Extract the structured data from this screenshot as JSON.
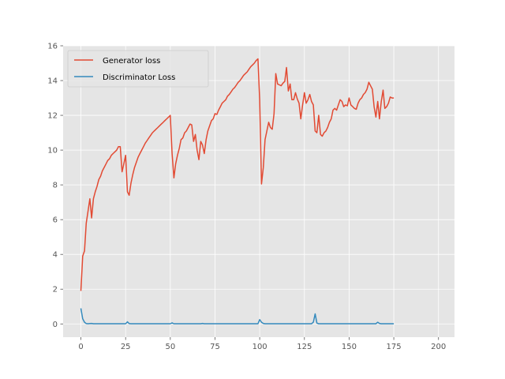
{
  "chart_data": {
    "type": "line",
    "title": "",
    "xlabel": "",
    "ylabel": "",
    "xlim": [
      -9.95,
      208.95
    ],
    "ylim": [
      -0.76,
      16.0
    ],
    "grid": true,
    "legend_position": "top-left",
    "x_ticks": [
      0,
      25,
      50,
      75,
      100,
      125,
      150,
      175,
      200
    ],
    "x_tick_labels": [
      "0",
      "25",
      "50",
      "75",
      "100",
      "125",
      "150",
      "175",
      "200"
    ],
    "y_ticks": [
      0,
      2,
      4,
      6,
      8,
      10,
      12,
      14,
      16
    ],
    "y_tick_labels": [
      "0",
      "2",
      "4",
      "6",
      "8",
      "10",
      "12",
      "14",
      "16"
    ],
    "series": [
      {
        "name": "Generator loss",
        "color": "#E24A33",
        "points": [
          [
            0,
            1.9
          ],
          [
            1,
            3.9
          ],
          [
            2,
            4.2
          ],
          [
            3,
            5.8
          ],
          [
            4,
            6.5
          ],
          [
            5,
            7.2
          ],
          [
            6,
            6.1
          ],
          [
            7,
            7.2
          ],
          [
            8,
            7.6
          ],
          [
            9,
            7.9
          ],
          [
            10,
            8.3
          ],
          [
            11,
            8.5
          ],
          [
            12,
            8.8
          ],
          [
            13,
            9.0
          ],
          [
            14,
            9.2
          ],
          [
            15,
            9.4
          ],
          [
            16,
            9.5
          ],
          [
            17,
            9.7
          ],
          [
            18,
            9.8
          ],
          [
            19,
            9.9
          ],
          [
            20,
            10.0
          ],
          [
            21,
            10.2
          ],
          [
            22,
            10.2
          ],
          [
            23,
            8.75
          ],
          [
            24,
            9.2
          ],
          [
            25,
            9.7
          ],
          [
            26,
            7.6
          ],
          [
            27,
            7.4
          ],
          [
            28,
            8.1
          ],
          [
            29,
            8.6
          ],
          [
            30,
            9.0
          ],
          [
            31,
            9.3
          ],
          [
            32,
            9.6
          ],
          [
            33,
            9.8
          ],
          [
            34,
            10.0
          ],
          [
            35,
            10.2
          ],
          [
            36,
            10.4
          ],
          [
            37,
            10.55
          ],
          [
            38,
            10.7
          ],
          [
            39,
            10.85
          ],
          [
            40,
            11.0
          ],
          [
            41,
            11.1
          ],
          [
            42,
            11.2
          ],
          [
            43,
            11.3
          ],
          [
            44,
            11.4
          ],
          [
            45,
            11.5
          ],
          [
            46,
            11.6
          ],
          [
            47,
            11.7
          ],
          [
            48,
            11.8
          ],
          [
            49,
            11.9
          ],
          [
            50,
            12.0
          ],
          [
            51,
            9.8
          ],
          [
            52,
            8.4
          ],
          [
            53,
            9.2
          ],
          [
            54,
            9.7
          ],
          [
            55,
            10.1
          ],
          [
            56,
            10.6
          ],
          [
            57,
            10.7
          ],
          [
            58,
            11.0
          ],
          [
            59,
            11.1
          ],
          [
            60,
            11.3
          ],
          [
            61,
            11.5
          ],
          [
            62,
            11.45
          ],
          [
            63,
            10.5
          ],
          [
            64,
            10.9
          ],
          [
            65,
            10.0
          ],
          [
            66,
            9.45
          ],
          [
            67,
            10.5
          ],
          [
            68,
            10.3
          ],
          [
            69,
            9.8
          ],
          [
            70,
            10.6
          ],
          [
            71,
            11.1
          ],
          [
            72,
            11.4
          ],
          [
            73,
            11.7
          ],
          [
            74,
            11.8
          ],
          [
            75,
            12.1
          ],
          [
            76,
            12.05
          ],
          [
            77,
            12.3
          ],
          [
            78,
            12.5
          ],
          [
            79,
            12.7
          ],
          [
            80,
            12.8
          ],
          [
            81,
            12.9
          ],
          [
            82,
            13.1
          ],
          [
            83,
            13.2
          ],
          [
            84,
            13.35
          ],
          [
            85,
            13.5
          ],
          [
            86,
            13.6
          ],
          [
            87,
            13.75
          ],
          [
            88,
            13.9
          ],
          [
            89,
            14.0
          ],
          [
            90,
            14.15
          ],
          [
            91,
            14.3
          ],
          [
            92,
            14.4
          ],
          [
            93,
            14.5
          ],
          [
            94,
            14.65
          ],
          [
            95,
            14.8
          ],
          [
            96,
            14.9
          ],
          [
            97,
            15.0
          ],
          [
            98,
            15.15
          ],
          [
            99,
            15.25
          ],
          [
            100,
            12.9
          ],
          [
            101,
            8.05
          ],
          [
            102,
            9.0
          ],
          [
            103,
            10.6
          ],
          [
            104,
            11.1
          ],
          [
            105,
            11.6
          ],
          [
            106,
            11.3
          ],
          [
            107,
            11.2
          ],
          [
            108,
            12.1
          ],
          [
            109,
            14.4
          ],
          [
            110,
            13.8
          ],
          [
            111,
            13.75
          ],
          [
            112,
            13.7
          ],
          [
            113,
            13.85
          ],
          [
            114,
            13.95
          ],
          [
            115,
            14.75
          ],
          [
            116,
            13.4
          ],
          [
            117,
            13.8
          ],
          [
            118,
            12.9
          ],
          [
            119,
            12.9
          ],
          [
            120,
            13.3
          ],
          [
            121,
            12.95
          ],
          [
            122,
            12.7
          ],
          [
            123,
            11.8
          ],
          [
            124,
            12.6
          ],
          [
            125,
            13.3
          ],
          [
            126,
            12.7
          ],
          [
            127,
            12.9
          ],
          [
            128,
            13.2
          ],
          [
            129,
            12.8
          ],
          [
            130,
            12.6
          ],
          [
            131,
            11.1
          ],
          [
            132,
            11.0
          ],
          [
            133,
            12.0
          ],
          [
            134,
            10.9
          ],
          [
            135,
            10.8
          ],
          [
            136,
            11.0
          ],
          [
            137,
            11.1
          ],
          [
            138,
            11.3
          ],
          [
            139,
            11.6
          ],
          [
            140,
            11.8
          ],
          [
            141,
            12.3
          ],
          [
            142,
            12.4
          ],
          [
            143,
            12.3
          ],
          [
            144,
            12.6
          ],
          [
            145,
            12.9
          ],
          [
            146,
            12.8
          ],
          [
            147,
            12.5
          ],
          [
            148,
            12.6
          ],
          [
            149,
            12.55
          ],
          [
            150,
            13.0
          ],
          [
            151,
            12.6
          ],
          [
            152,
            12.5
          ],
          [
            153,
            12.4
          ],
          [
            154,
            12.35
          ],
          [
            155,
            12.7
          ],
          [
            156,
            12.9
          ],
          [
            157,
            13.0
          ],
          [
            158,
            13.2
          ],
          [
            159,
            13.3
          ],
          [
            160,
            13.5
          ],
          [
            161,
            13.9
          ],
          [
            162,
            13.7
          ],
          [
            163,
            13.5
          ],
          [
            164,
            12.5
          ],
          [
            165,
            11.9
          ],
          [
            166,
            12.8
          ],
          [
            167,
            11.8
          ],
          [
            168,
            12.8
          ],
          [
            169,
            13.45
          ],
          [
            170,
            12.4
          ],
          [
            171,
            12.5
          ],
          [
            172,
            12.7
          ],
          [
            173,
            13.05
          ],
          [
            174,
            13.0
          ],
          [
            175,
            13.0
          ]
        ]
      },
      {
        "name": "Discriminator Loss",
        "color": "#348ABD",
        "points": [
          [
            0,
            0.9
          ],
          [
            1,
            0.3
          ],
          [
            2,
            0.1
          ],
          [
            3,
            0.02
          ],
          [
            4,
            0.01
          ],
          [
            5,
            0.02
          ],
          [
            6,
            0.03
          ],
          [
            7,
            0.01
          ],
          [
            8,
            0.01
          ],
          [
            10,
            0.01
          ],
          [
            20,
            0.01
          ],
          [
            25,
            0.01
          ],
          [
            26,
            0.12
          ],
          [
            27,
            0.02
          ],
          [
            28,
            0.01
          ],
          [
            40,
            0.01
          ],
          [
            50,
            0.01
          ],
          [
            51,
            0.06
          ],
          [
            52,
            0.01
          ],
          [
            53,
            0.01
          ],
          [
            60,
            0.01
          ],
          [
            67,
            0.01
          ],
          [
            68,
            0.03
          ],
          [
            69,
            0.01
          ],
          [
            80,
            0.01
          ],
          [
            90,
            0.01
          ],
          [
            99,
            0.01
          ],
          [
            100,
            0.25
          ],
          [
            101,
            0.1
          ],
          [
            102,
            0.03
          ],
          [
            103,
            0.01
          ],
          [
            110,
            0.01
          ],
          [
            120,
            0.01
          ],
          [
            125,
            0.01
          ],
          [
            129,
            0.01
          ],
          [
            130,
            0.1
          ],
          [
            131,
            0.58
          ],
          [
            132,
            0.05
          ],
          [
            133,
            0.01
          ],
          [
            140,
            0.01
          ],
          [
            150,
            0.01
          ],
          [
            160,
            0.01
          ],
          [
            165,
            0.01
          ],
          [
            166,
            0.1
          ],
          [
            167,
            0.03
          ],
          [
            168,
            0.01
          ],
          [
            175,
            0.01
          ]
        ]
      }
    ]
  }
}
